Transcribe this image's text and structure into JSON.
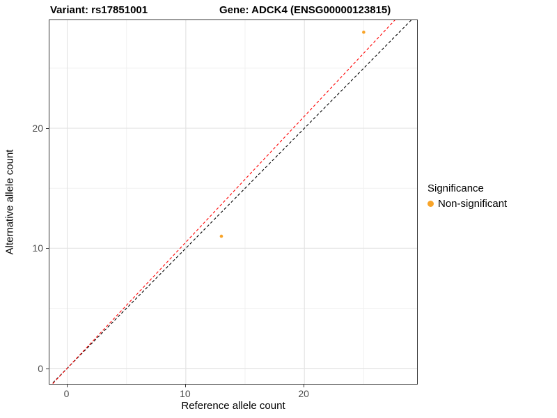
{
  "chart_data": {
    "type": "scatter",
    "title_left": "Variant: rs17851001",
    "title_right": "Gene: ADCK4 (ENSG00000123815)",
    "xlabel": "Reference allele count",
    "ylabel": "Alternative allele count",
    "xlim": [
      -1.5,
      29.5
    ],
    "ylim": [
      -1.3,
      29
    ],
    "xticks": [
      0,
      10,
      20
    ],
    "yticks": [
      0,
      10,
      20
    ],
    "minor_xticks": [
      5,
      15,
      25
    ],
    "minor_yticks": [
      5,
      15,
      25
    ],
    "grid": true,
    "grid_major_color": "#e3e3e3",
    "grid_minor_color": "#f1f1f1",
    "panel_border_color": "#333333",
    "tick_label_color": "#4d4d4d",
    "points": [
      {
        "x": 13,
        "y": 11
      },
      {
        "x": 25,
        "y": 28
      }
    ],
    "point_color": "#f8a429",
    "point_radius": 2.3,
    "dash_pattern": "4 3",
    "lines": [
      {
        "name": "identity-line",
        "slope": 1.0,
        "intercept": 0,
        "color": "#000000"
      },
      {
        "name": "expected-ratio-line",
        "slope": 1.05,
        "intercept": 0,
        "color": "#ff0000"
      }
    ],
    "legend": {
      "title": "Significance",
      "items": [
        {
          "label": "Non-significant",
          "color": "#f8a429"
        }
      ]
    }
  }
}
